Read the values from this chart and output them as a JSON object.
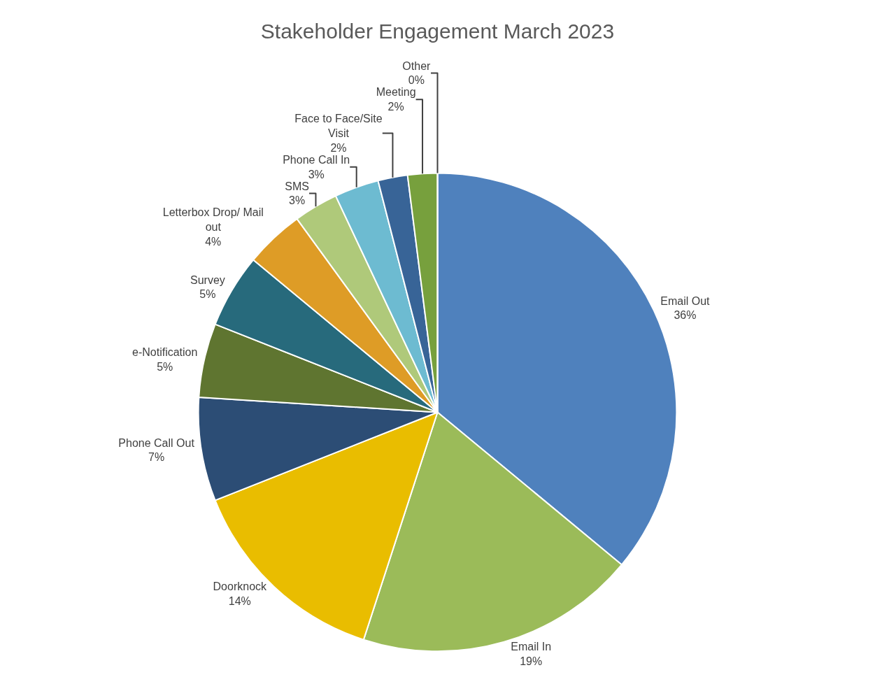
{
  "chart_data": {
    "type": "pie",
    "title": "Stakeholder Engagement March 2023",
    "categories": [
      "Email Out",
      "Email In",
      "Doorknock",
      "Phone Call Out",
      "e-Notification",
      "Survey",
      "Letterbox Drop/ Mail out",
      "SMS",
      "Phone Call In",
      "Face to Face/Site Visit",
      "Meeting",
      "Other"
    ],
    "values": [
      36,
      19,
      14,
      7,
      5,
      5,
      4,
      3,
      3,
      2,
      2,
      0
    ],
    "value_labels": [
      "36%",
      "19%",
      "14%",
      "7%",
      "5%",
      "5%",
      "4%",
      "3%",
      "3%",
      "2%",
      "2%",
      "0%"
    ],
    "colors": [
      "#4f81bd",
      "#9bbb59",
      "#e9bd00",
      "#2c4d75",
      "#5f7530",
      "#276a7c",
      "#de9c26",
      "#afc97a",
      "#6dbbd1",
      "#386497",
      "#77a03d",
      "#e6a01f"
    ],
    "legend": false
  }
}
